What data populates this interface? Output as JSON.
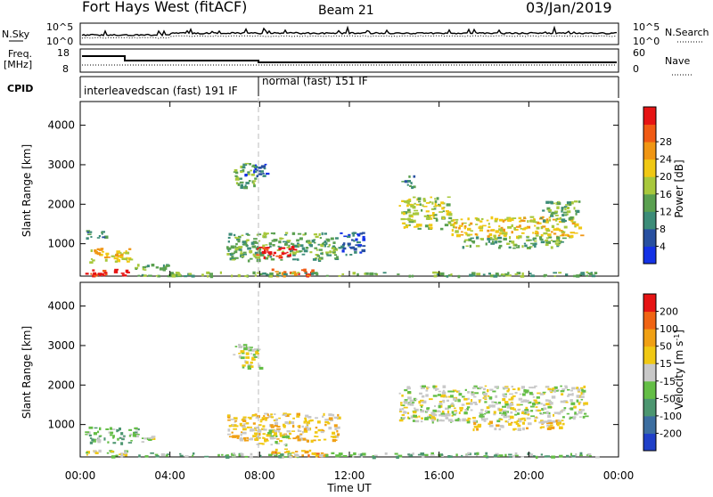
{
  "header": {
    "station": "Fort Hays West (fitACF)",
    "beam": "Beam 21",
    "date": "03/Jan/2019"
  },
  "strip": {
    "nsky_label": "N.Sky",
    "nsearch_label": "N.Search",
    "freq_label": "Freq.",
    "freq_unit": "[MHz]",
    "nave_label": "Nave",
    "cpid_label": "CPID",
    "left_ticks_power": [
      "10^5",
      "10^0"
    ],
    "right_ticks_power": [
      "10^5",
      "10^0"
    ],
    "freq_ticks": [
      "18",
      "8"
    ],
    "nave_ticks": [
      "60",
      "0"
    ],
    "cpid_1": "interleavedscan (fast) 191 IF",
    "cpid_2": "normal (fast) 151 IF"
  },
  "axes": {
    "ylabel": "Slant Range [km]",
    "xlabel": "Time UT",
    "y_ticks": [
      "1000",
      "2000",
      "3000",
      "4000"
    ],
    "x_ticks": [
      "00:00",
      "04:00",
      "08:00",
      "12:00",
      "16:00",
      "20:00",
      "00:00"
    ]
  },
  "power_scale": {
    "label": "Power [dB]",
    "ticks": [
      "4",
      "8",
      "12",
      "16",
      "20",
      "24",
      "28"
    ],
    "colors": [
      "#1432e6",
      "#2850a0",
      "#3c8c78",
      "#5aa050",
      "#a8c83c",
      "#f0c814",
      "#f09614",
      "#f05a14",
      "#e61414"
    ]
  },
  "velocity_scale": {
    "label": "Velocity [m s^-1]",
    "ticks": [
      "200",
      "100",
      "50",
      "15",
      "-15",
      "-50",
      "-100",
      "-200"
    ],
    "colors": [
      "#2040c8",
      "#3c6ea0",
      "#4c9670",
      "#64be46",
      "#c8c8c8",
      "#f0c814",
      "#f0a014",
      "#f06414",
      "#e61414"
    ]
  },
  "chart_data": [
    {
      "type": "heatmap",
      "title": "Power",
      "x_unit": "hours UT",
      "y_unit": "km",
      "xlim": [
        0,
        24
      ],
      "ylim": [
        180,
        4600
      ],
      "regions": [
        {
          "t0": 0.2,
          "t1": 2.1,
          "r0": 200,
          "r1": 380,
          "level": 8
        },
        {
          "t0": 0.2,
          "t1": 2.2,
          "r0": 550,
          "r1": 900,
          "level": 5
        },
        {
          "t0": 0.2,
          "t1": 1.3,
          "r0": 1150,
          "r1": 1350,
          "level": 2
        },
        {
          "t0": 2.2,
          "t1": 4.0,
          "r0": 350,
          "r1": 500,
          "level": 3
        },
        {
          "t0": 6.8,
          "t1": 7.8,
          "r0": 2450,
          "r1": 3050,
          "level": 3
        },
        {
          "t0": 7.2,
          "t1": 8.3,
          "r0": 2700,
          "r1": 3050,
          "level": 1
        },
        {
          "t0": 6.5,
          "t1": 11.5,
          "r0": 600,
          "r1": 1300,
          "level": 3
        },
        {
          "t0": 7.8,
          "t1": 9.5,
          "r0": 650,
          "r1": 950,
          "level": 8
        },
        {
          "t0": 8.5,
          "t1": 10.6,
          "r0": 200,
          "r1": 380,
          "level": 7
        },
        {
          "t0": 2.5,
          "t1": 23.0,
          "r0": 200,
          "r1": 300,
          "level": 3
        },
        {
          "t0": 11.5,
          "t1": 12.6,
          "r0": 700,
          "r1": 1300,
          "level": 1
        },
        {
          "t0": 14.2,
          "t1": 16.5,
          "r0": 1400,
          "r1": 2200,
          "level": 4
        },
        {
          "t0": 16.5,
          "t1": 22.3,
          "r0": 1200,
          "r1": 1700,
          "level": 5
        },
        {
          "t0": 17.0,
          "t1": 21.5,
          "r0": 900,
          "r1": 1200,
          "level": 3
        },
        {
          "t0": 20.5,
          "t1": 22.3,
          "r0": 1600,
          "r1": 2100,
          "level": 3
        },
        {
          "t0": 14.3,
          "t1": 14.9,
          "r0": 2450,
          "r1": 2750,
          "level": 2
        }
      ]
    },
    {
      "type": "heatmap",
      "title": "Velocity",
      "x_unit": "hours UT",
      "y_unit": "km",
      "xlim": [
        0,
        24
      ],
      "ylim": [
        180,
        4600
      ],
      "regions": [
        {
          "t0": 0.2,
          "t1": 2.1,
          "r0": 200,
          "r1": 380,
          "level": 4
        },
        {
          "t0": 0.2,
          "t1": 2.5,
          "r0": 550,
          "r1": 950,
          "level": 3
        },
        {
          "t0": 2.5,
          "t1": 3.2,
          "r0": 580,
          "r1": 800,
          "level": 4
        },
        {
          "t0": 6.8,
          "t1": 8.0,
          "r0": 2450,
          "r1": 3050,
          "level": 4
        },
        {
          "t0": 6.5,
          "t1": 11.5,
          "r0": 600,
          "r1": 1300,
          "level": 5
        },
        {
          "t0": 7.8,
          "t1": 9.2,
          "r0": 500,
          "r1": 900,
          "level": 4
        },
        {
          "t0": 8.5,
          "t1": 11.0,
          "r0": 200,
          "r1": 400,
          "level": 6
        },
        {
          "t0": 2.5,
          "t1": 23.0,
          "r0": 200,
          "r1": 300,
          "level": 3
        },
        {
          "t0": 14.2,
          "t1": 22.5,
          "r0": 1100,
          "r1": 2000,
          "level": 4
        },
        {
          "t0": 17.5,
          "t1": 21.5,
          "r0": 900,
          "r1": 1150,
          "level": 5
        }
      ]
    }
  ]
}
